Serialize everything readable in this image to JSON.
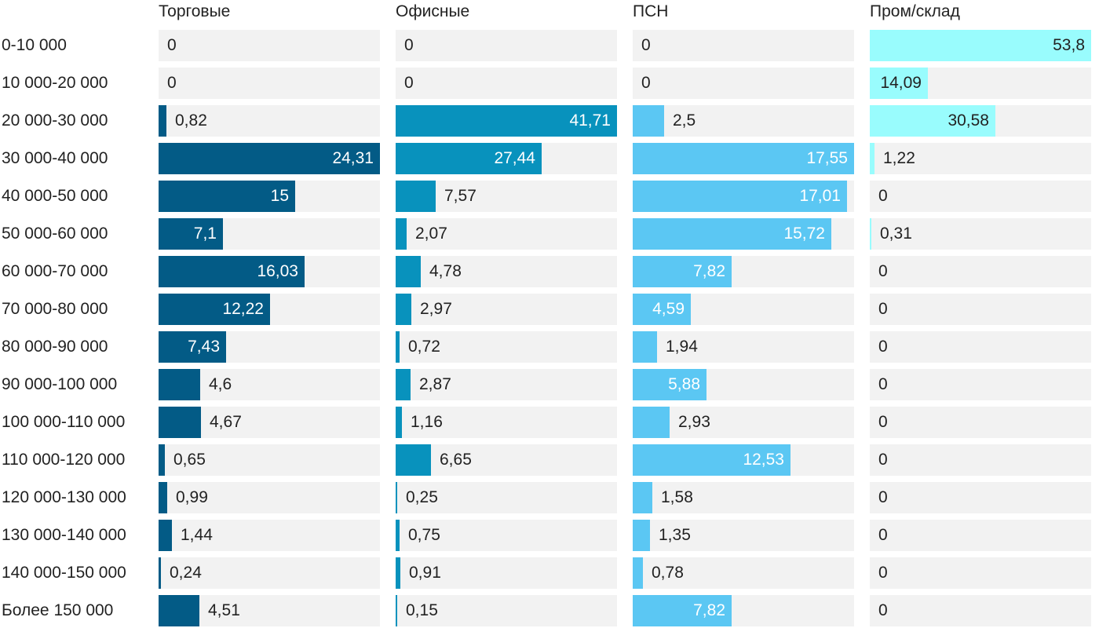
{
  "chart_data": {
    "type": "bar",
    "orientation": "horizontal",
    "layout": "small-multiples",
    "categories": [
      "0-10 000",
      "10 000-20 000",
      "20 000-30 000",
      "30 000-40 000",
      "40 000-50 000",
      "50 000-60 000",
      "60 000-70 000",
      "70 000-80 000",
      "80 000-90 000",
      "90 000-100 000",
      "100 000-110 000",
      "110 000-120 000",
      "120 000-130 000",
      "130 000-140 000",
      "140 000-150 000",
      "Более 150 000"
    ],
    "series": [
      {
        "name": "Торговые",
        "color": "#035b86",
        "values": [
          0,
          0,
          0.82,
          24.31,
          15,
          7.1,
          16.03,
          12.22,
          7.43,
          4.6,
          4.67,
          0.65,
          0.99,
          1.44,
          0.24,
          4.51
        ],
        "labels": [
          "0",
          "0",
          "0,82",
          "24,31",
          "15",
          "7,1",
          "16,03",
          "12,22",
          "7,43",
          "4,6",
          "4,67",
          "0,65",
          "0,99",
          "1,44",
          "0,24",
          "4,51"
        ]
      },
      {
        "name": "Офисные",
        "color": "#0892bd",
        "values": [
          0,
          0,
          41.71,
          27.44,
          7.57,
          2.07,
          4.78,
          2.97,
          0.72,
          2.87,
          1.16,
          6.65,
          0.25,
          0.75,
          0.91,
          0.15
        ],
        "labels": [
          "0",
          "0",
          "41,71",
          "27,44",
          "7,57",
          "2,07",
          "4,78",
          "2,97",
          "0,72",
          "2,87",
          "1,16",
          "6,65",
          "0,25",
          "0,75",
          "0,91",
          "0,15"
        ]
      },
      {
        "name": "ПСН",
        "color": "#5bc7f3",
        "values": [
          0,
          0,
          2.5,
          17.55,
          17.01,
          15.72,
          7.82,
          4.59,
          1.94,
          5.88,
          2.93,
          12.53,
          1.58,
          1.35,
          0.78,
          7.82
        ],
        "labels": [
          "0",
          "0",
          "2,5",
          "17,55",
          "17,01",
          "15,72",
          "7,82",
          "4,59",
          "1,94",
          "5,88",
          "2,93",
          "12,53",
          "1,58",
          "1,35",
          "0,78",
          "7,82"
        ]
      },
      {
        "name": "Пром/склад",
        "color": "#99fcfd",
        "values": [
          53.8,
          14.09,
          30.58,
          1.22,
          0,
          0.31,
          0,
          0,
          0,
          0,
          0,
          0,
          0,
          0,
          0,
          0
        ],
        "labels": [
          "53,8",
          "14,09",
          "30,58",
          "1,22",
          "0",
          "0,31",
          "0",
          "0",
          "0",
          "0",
          "0",
          "0",
          "0",
          "0",
          "0",
          "0"
        ]
      }
    ],
    "xlim_per_panel": [
      [
        0,
        24.31
      ],
      [
        0,
        41.71
      ],
      [
        0,
        17.55
      ],
      [
        0,
        53.8
      ]
    ],
    "grid": false,
    "legend": "none"
  },
  "colors": {
    "track": "#f2f2f2",
    "text": "#222222",
    "text_on_bar": "#ffffff"
  }
}
